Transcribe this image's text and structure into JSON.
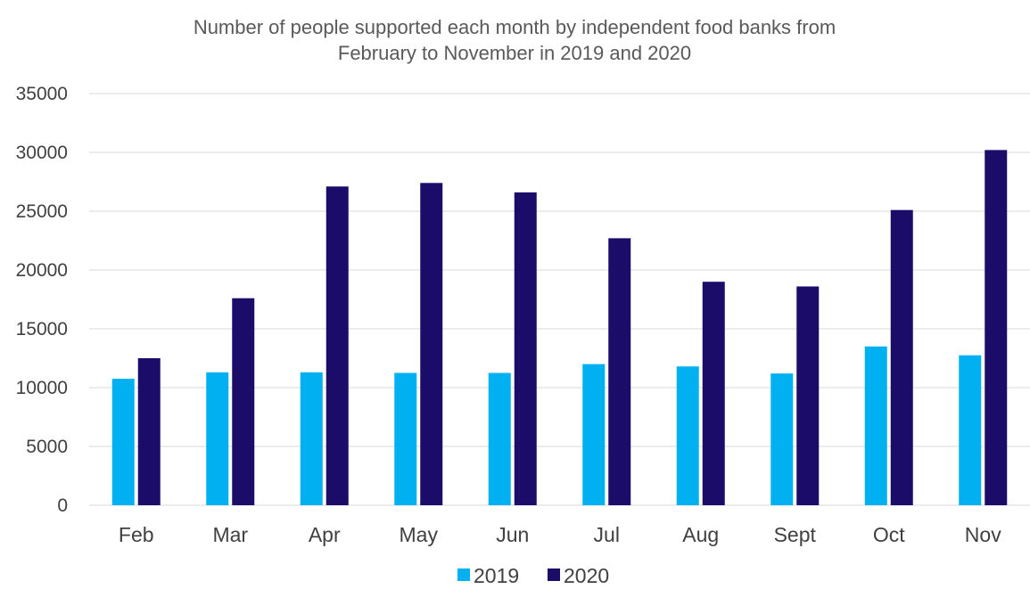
{
  "chart_data": {
    "type": "bar",
    "title": "Number of people supported each month by independent food banks from February to November in 2019 and 2020",
    "title_lines": [
      "Number of people supported each month by independent food banks from",
      "February to November in 2019 and 2020"
    ],
    "xlabel": "",
    "ylabel": "",
    "categories": [
      "Feb",
      "Mar",
      "Apr",
      "May",
      "Jun",
      "Jul",
      "Aug",
      "Sept",
      "Oct",
      "Nov"
    ],
    "series": [
      {
        "name": "2019",
        "color": "#00b0f0",
        "values": [
          10750,
          11300,
          11300,
          11250,
          11250,
          12000,
          11800,
          11200,
          13500,
          12750
        ]
      },
      {
        "name": "2020",
        "color": "#1b0c6a",
        "values": [
          12500,
          17600,
          27100,
          27400,
          26600,
          22700,
          19000,
          18600,
          25100,
          30200
        ]
      }
    ],
    "ylim": [
      0,
      35000
    ],
    "yticks": [
      0,
      5000,
      10000,
      15000,
      20000,
      25000,
      30000,
      35000
    ],
    "grid": true,
    "legend_position": "bottom"
  }
}
